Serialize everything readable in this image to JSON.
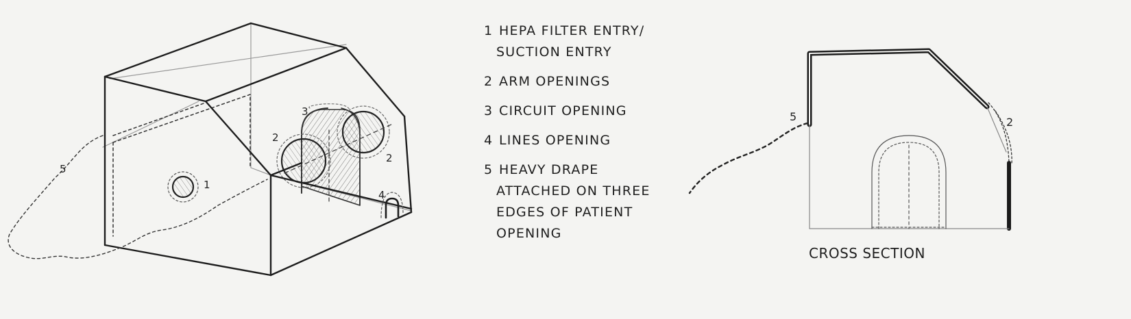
{
  "legend": [
    {
      "num": "1",
      "lines": [
        "HEPA FILTER ENTRY/",
        "SUCTION ENTRY"
      ]
    },
    {
      "num": "2",
      "lines": [
        "ARM OPENINGS"
      ]
    },
    {
      "num": "3",
      "lines": [
        "CIRCUIT OPENING"
      ]
    },
    {
      "num": "4",
      "lines": [
        "LINES OPENING"
      ]
    },
    {
      "num": "5",
      "lines": [
        "HEAVY DRAPE",
        "ATTACHED ON THREE",
        "EDGES OF PATIENT",
        "OPENING"
      ]
    }
  ],
  "callouts": {
    "box": [
      "1",
      "2",
      "3",
      "2",
      "4",
      "5"
    ],
    "section": [
      "5",
      "2"
    ]
  },
  "section_title": "CROSS SECTION"
}
